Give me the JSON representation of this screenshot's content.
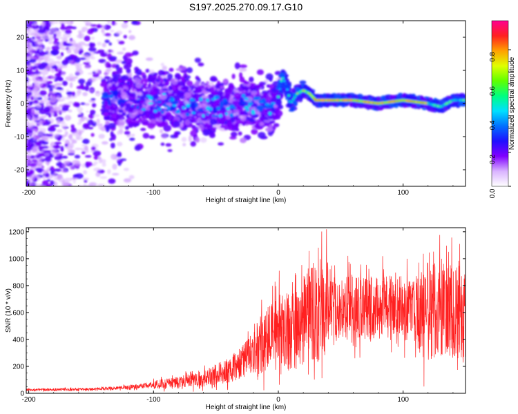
{
  "chart_data": [
    {
      "type": "heatmap",
      "title": "S197.2025.270.09.17.G10",
      "xlabel": "Height of straight line (km)",
      "ylabel": "Frequency (Hz)",
      "xlim": [
        -202,
        150
      ],
      "ylim": [
        -25,
        25
      ],
      "xticks": [
        -200,
        -100,
        0,
        100
      ],
      "xtick_labels": [
        "-200",
        "-100",
        "0",
        "100"
      ],
      "yticks": [
        -20,
        -10,
        0,
        10,
        20
      ],
      "ytick_labels": [
        "-20",
        "-10",
        "0",
        "10",
        "20"
      ],
      "colorbar": {
        "label": "Normalized spectral amplitude",
        "range": [
          0,
          0.97
        ],
        "ticks": [
          0.0,
          0.2,
          0.4,
          0.6,
          0.8
        ],
        "tick_labels": [
          "0.0",
          "0.2",
          "0.4",
          "0.6",
          "0.8"
        ],
        "colors": [
          "#ffffff",
          "#d9b3ff",
          "#8000ff",
          "#2010ff",
          "#0070ff",
          "#00e0ff",
          "#00ff80",
          "#60ff00",
          "#e0ff00",
          "#ffa000",
          "#ff2020",
          "#ff0090"
        ]
      },
      "ridge_line": {
        "description_free": true,
        "x": [
          -202,
          -150,
          -120,
          -100,
          -80,
          -60,
          -40,
          -20,
          -5,
          0,
          3,
          6,
          10,
          15,
          20,
          25,
          30,
          40,
          60,
          80,
          100,
          120,
          130,
          140,
          150
        ],
        "y": [
          3,
          3,
          1,
          0,
          0,
          -1,
          -1,
          0,
          -2,
          2,
          8,
          6,
          0,
          3,
          4,
          3,
          1,
          1,
          1,
          0,
          1,
          0,
          -1,
          1,
          1
        ]
      }
    },
    {
      "type": "line",
      "title": "",
      "xlabel": "Height of straight line (km)",
      "ylabel": "SNR (10 * v/v)",
      "xlim": [
        -202,
        150
      ],
      "ylim": [
        0,
        1230
      ],
      "xticks": [
        -200,
        -100,
        0,
        100
      ],
      "xtick_labels": [
        "-200",
        "-100",
        "0",
        "100"
      ],
      "yticks": [
        0,
        200,
        400,
        600,
        800,
        1000,
        1200
      ],
      "ytick_labels": [
        "0",
        "200",
        "400",
        "600",
        "800",
        "1000",
        "1200"
      ],
      "color": "#ff2020",
      "trend": {
        "x": [
          -202,
          -150,
          -120,
          -100,
          -80,
          -60,
          -40,
          -30,
          -20,
          -10,
          0,
          10,
          20,
          30,
          40,
          60,
          80,
          100,
          120,
          140,
          150
        ],
        "y": [
          25,
          30,
          45,
          60,
          80,
          110,
          170,
          220,
          300,
          380,
          430,
          480,
          540,
          600,
          620,
          640,
          640,
          630,
          620,
          600,
          560
        ]
      }
    }
  ]
}
